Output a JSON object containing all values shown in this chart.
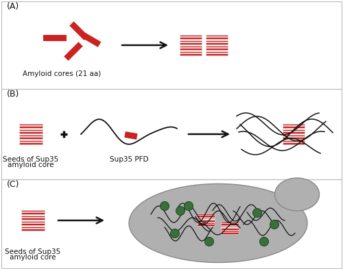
{
  "background_color": "#ffffff",
  "border_color": "#bbbbbb",
  "amyloid_color": "#cc2222",
  "arrow_color": "#111111",
  "text_color": "#111111",
  "cell_color": "#b0b0b0",
  "cell_edge_color": "#888888",
  "green_dot_color": "#3a6e3a",
  "panel_labels": [
    "(A)",
    "(B)",
    "(C)"
  ],
  "panel_A_text": "Amyloid cores (21 aa)",
  "panel_B_text1": "Seeds of Sup35",
  "panel_B_text2": "amyloid core",
  "panel_B_text3": "Sup35 PFD",
  "panel_C_text1": "Seeds of Sup35",
  "panel_C_text2": "amyloid core",
  "fig_width": 5.0,
  "fig_height": 3.93,
  "dpi": 100
}
